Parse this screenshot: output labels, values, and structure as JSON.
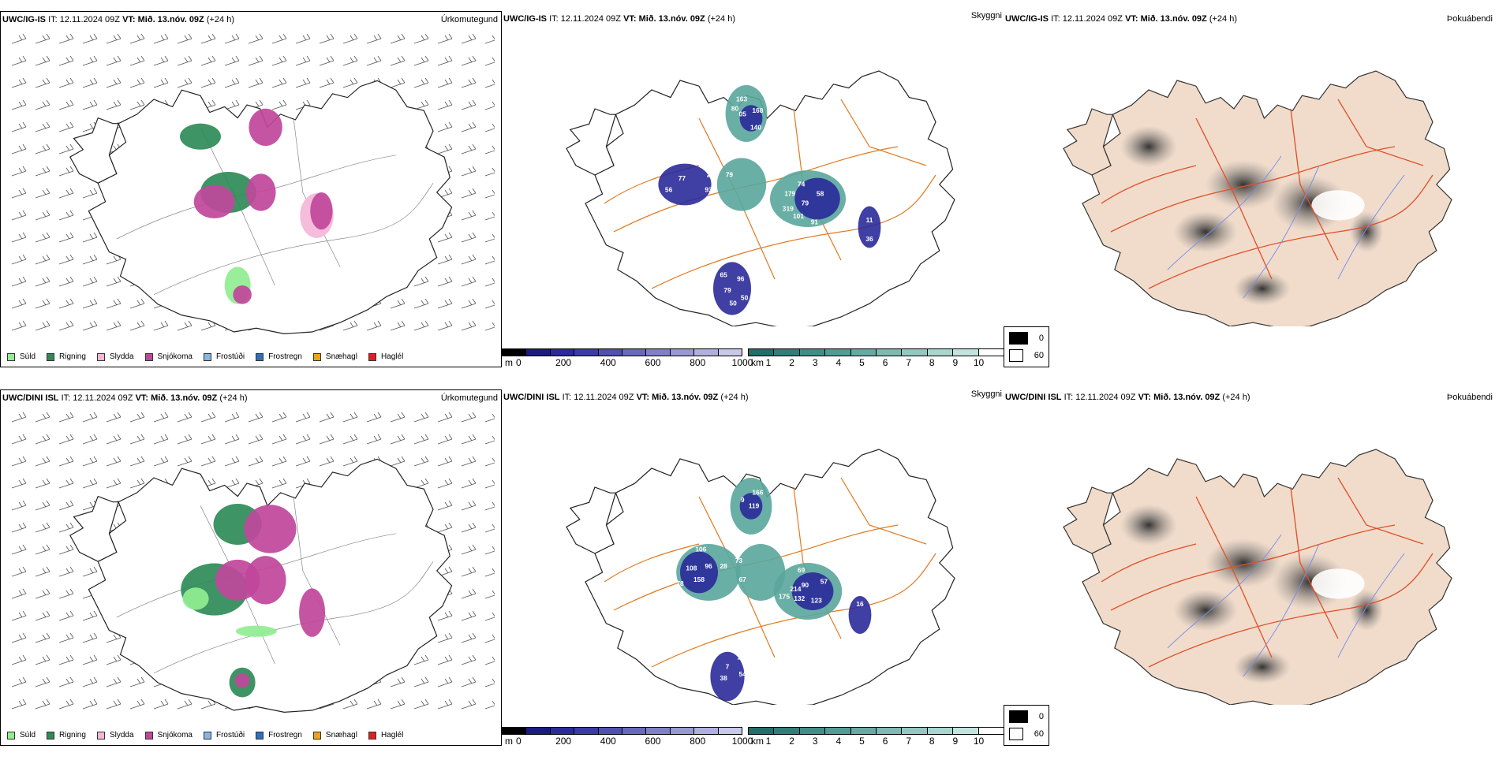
{
  "rows": [
    {
      "model": "UWC/IG-IS",
      "it_label": "IT:",
      "it_value": "12.11.2024 09Z",
      "vt_label": "VT:",
      "vt_value": "Mið. 13.nóv. 09Z",
      "lead": "(+24 h)",
      "precip_type_title": "Úrkomutegund",
      "visibility_title": "Skyggni",
      "fog_title": "Þokuábendi",
      "visibility_labels": [
        "163",
        "80",
        "168",
        "05",
        "140",
        "132",
        "77",
        "25",
        "79",
        "56",
        "93",
        "74",
        "179",
        "58",
        "79",
        "319",
        "101",
        "91",
        "11",
        "36",
        "65",
        "96",
        "79",
        "50",
        "50"
      ]
    },
    {
      "model": "UWC/DINI ISL",
      "it_label": "IT:",
      "it_value": "12.11.2024 09Z",
      "vt_label": "VT:",
      "vt_value": "Mið. 13.nóv. 09Z",
      "lead": "(+24 h)",
      "precip_type_title": "Úrkomutegund",
      "visibility_title": "Skyggni",
      "fog_title": "Þokuábendi",
      "visibility_labels": [
        "166",
        "9",
        "119",
        "307",
        "106",
        "73",
        "108",
        "96",
        "28",
        "69",
        "158",
        "67",
        "57",
        "214",
        "90",
        "78",
        "175",
        "132",
        "123",
        "81",
        "16",
        "89",
        "10",
        "7",
        "38",
        "54"
      ]
    }
  ],
  "precip_legend": [
    {
      "label": "Súld",
      "color": "#90ee90"
    },
    {
      "label": "Rigning",
      "color": "#2e8b57"
    },
    {
      "label": "Slydda",
      "color": "#f4b6d8"
    },
    {
      "label": "Snjókoma",
      "color": "#c0479b"
    },
    {
      "label": "Frostúði",
      "color": "#87b5e8"
    },
    {
      "label": "Frostregn",
      "color": "#2f6fc0"
    },
    {
      "label": "Snæhagl",
      "color": "#f0a020"
    },
    {
      "label": "Haglél",
      "color": "#e02020"
    }
  ],
  "visibility_scale_m": {
    "unit": "m",
    "ticks": [
      "0",
      "200",
      "400",
      "600",
      "800",
      "1000"
    ],
    "colors": [
      "#000000",
      "#1a1a80",
      "#2a2a9a",
      "#3a3aa8",
      "#5050b0",
      "#6868be",
      "#8080c8",
      "#9898d4",
      "#b0b0de",
      "#c8c8e8"
    ]
  },
  "visibility_scale_km": {
    "unit": "km",
    "ticks": [
      "1",
      "2",
      "3",
      "4",
      "5",
      "6",
      "7",
      "8",
      "9",
      "10"
    ],
    "colors": [
      "#1f6f6a",
      "#2f7f78",
      "#3f8f86",
      "#519d94",
      "#66aba3",
      "#7cbab2",
      "#93c8c1",
      "#abd5cf",
      "#c4e2de",
      "#ffffff"
    ]
  },
  "fog_legend": {
    "values": [
      "0",
      "60"
    ],
    "colors": [
      "#000000",
      "#ffffff"
    ]
  }
}
